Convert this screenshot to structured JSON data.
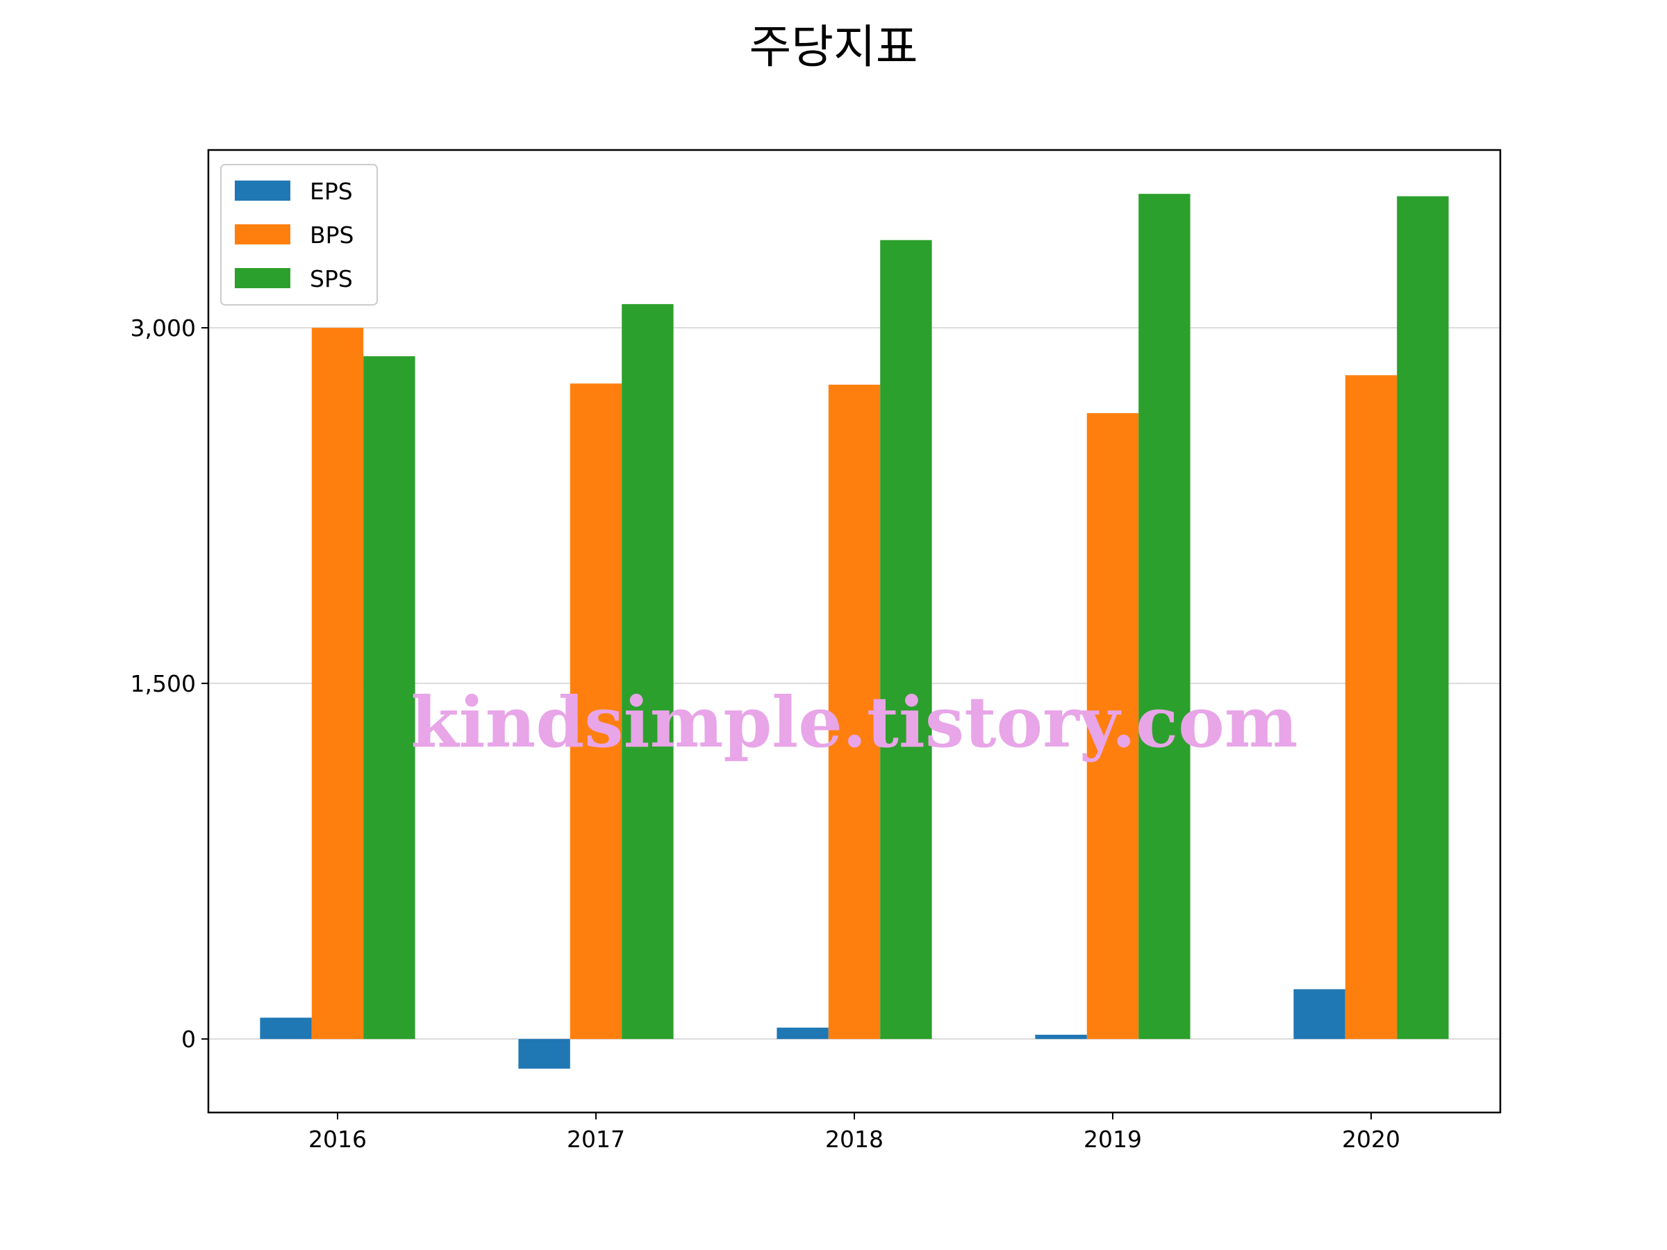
{
  "chart_data": {
    "type": "bar",
    "title": "주당지표",
    "xlabel": "",
    "ylabel": "",
    "categories": [
      "2016",
      "2017",
      "2018",
      "2019",
      "2020"
    ],
    "series": [
      {
        "name": "EPS",
        "color": "#1f77b4",
        "values": [
          90,
          -125,
          48,
          18,
          210
        ]
      },
      {
        "name": "BPS",
        "color": "#ff7f0e",
        "values": [
          3000,
          2765,
          2760,
          2640,
          2800
        ]
      },
      {
        "name": "SPS",
        "color": "#2ca02c",
        "values": [
          2880,
          3100,
          3370,
          3565,
          3555
        ]
      }
    ],
    "yticks": [
      0,
      1500,
      3000
    ],
    "ytick_labels": [
      "0",
      "1,500",
      "3,000"
    ],
    "ylim": [
      -310,
      3750
    ],
    "grid": "horizontal",
    "legend_position": "upper-left",
    "watermark": "kindsimple.tistory.com"
  }
}
